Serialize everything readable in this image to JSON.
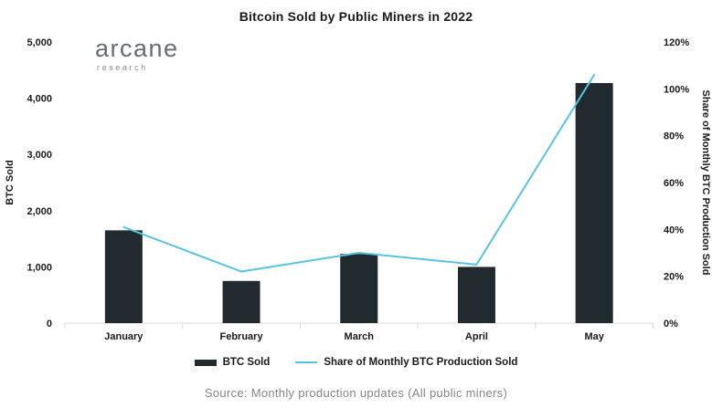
{
  "title": "Bitcoin Sold by Public Miners in 2022",
  "logo": {
    "name": "arcane",
    "sub": "research"
  },
  "source_note": "Source: Monthly production updates (All public miners)",
  "colors": {
    "bar": "#212a2e",
    "line": "#55c4e4",
    "axis_line": "#d9d9d9",
    "tick_text": "#1a1a1a",
    "muted_text": "#83888b"
  },
  "legend": {
    "bar_label": "BTC Sold",
    "line_label": "Share of Monthly BTC Production Sold"
  },
  "chart_data": {
    "type": "bar",
    "subtype": "combo-bar-line-dual-axis",
    "title": "Bitcoin Sold by Public Miners in 2022",
    "categories": [
      "January",
      "February",
      "March",
      "April",
      "May"
    ],
    "series": [
      {
        "name": "BTC Sold",
        "type": "bar",
        "axis": "left",
        "values": [
          1650,
          750,
          1230,
          1000,
          4270
        ]
      },
      {
        "name": "Share of Monthly BTC Production Sold",
        "type": "line",
        "axis": "right",
        "values": [
          41,
          22,
          30,
          25,
          106
        ]
      }
    ],
    "left_axis": {
      "label": "BTC Sold",
      "min": 0,
      "max": 5000,
      "step": 1000,
      "tick_labels": [
        "0",
        "1,000",
        "2,000",
        "3,000",
        "4,000",
        "5,000"
      ]
    },
    "right_axis": {
      "label": "Share of Monthly BTC Production Sold",
      "min": 0,
      "max": 120,
      "step": 20,
      "unit": "%",
      "tick_labels": [
        "0%",
        "20%",
        "40%",
        "60%",
        "80%",
        "100%",
        "120%"
      ]
    },
    "grid": false,
    "legend_position": "bottom"
  }
}
